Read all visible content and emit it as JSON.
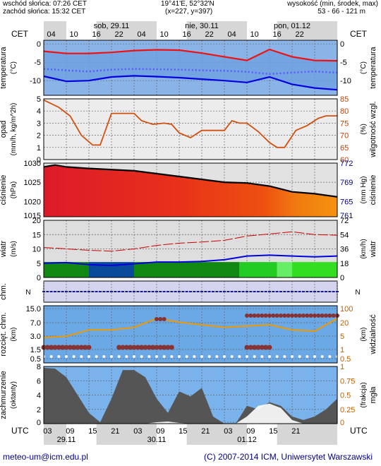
{
  "header": {
    "sunrise": "wschód słońca: 07:26 CET",
    "sunset": "zachód słońca: 15:32 CET",
    "coords": "19°41'E, 52°32'N",
    "grid": "(x=227, y=397)",
    "height_title": "wysokość (min, środek, max)",
    "height_values": "53 - 66 - 121 m"
  },
  "colors": {
    "panel_bg": "#ddddf0",
    "day_band": "#ffffff",
    "night_band": "#d6d6d6",
    "temp_red": "#ee1111",
    "temp_blue": "#0000dd",
    "dew": "#5a5aff",
    "humidity": "#d05010",
    "pressure": "#000000",
    "wind_green": "#11aa11",
    "wind_blue": "#0a4a9a",
    "cloud": "#555555",
    "visibility": "#ee9900",
    "fog": "#ffffff"
  },
  "chart_data": [
    {
      "type": "line",
      "title": "temperatura",
      "ylabel": "(°C)",
      "ylabel_right": "(°C)",
      "title_right": "temperatura",
      "ylim": [
        -14,
        1
      ],
      "ticks": [
        "0",
        "-5",
        "-10"
      ],
      "tick_values": [
        0,
        -5,
        -10
      ],
      "x_hours": [
        0,
        6,
        12,
        18,
        24,
        30,
        36,
        42,
        48,
        54,
        60,
        66,
        72,
        78
      ],
      "series": [
        {
          "values": [
            -2.0,
            -2.6,
            -2.6,
            -2.3,
            -1.8,
            -1.6,
            -1.7,
            -2.5,
            -3.5,
            -4.5,
            -1.5,
            -3.5,
            -4.5,
            -4.6
          ]
        },
        {
          "values": [
            -6.8,
            -7.2,
            -7.5,
            -7.0,
            -6.8,
            -6.9,
            -7.0,
            -7.2,
            -7.3,
            -7.6,
            -8.2,
            -7.8,
            -7.5,
            -7.8
          ]
        },
        {
          "values": [
            -8.8,
            -10.2,
            -10.0,
            -9.0,
            -8.7,
            -8.9,
            -9.2,
            -9.6,
            -10.0,
            -10.5,
            -9.0,
            -11.0,
            -12.0,
            -12.5
          ]
        }
      ]
    },
    {
      "type": "line",
      "title": "opad",
      "ylabel": "(mm/h, kg/m^2h)",
      "ylim": [
        0,
        5
      ],
      "ticks": [
        "5",
        "4",
        "3",
        "2",
        "1",
        "0"
      ],
      "tick_values": [
        5,
        4,
        3,
        2,
        1,
        0
      ],
      "title_right": "wilgotność wzgl.",
      "ylabel_right": "(%)",
      "ticks_right": [
        "85",
        "80",
        "75",
        "70",
        "65",
        "60"
      ],
      "x_hours": [
        0,
        4,
        7,
        10,
        13,
        15,
        18,
        21,
        24,
        26,
        29,
        32,
        34,
        36,
        39,
        42,
        45,
        48,
        50,
        52,
        54,
        57,
        60,
        62,
        64,
        67,
        70,
        73,
        75,
        78
      ],
      "series": [
        {
          "values": [
            84.5,
            81.5,
            78.0,
            70.0,
            66.0,
            66.0,
            79.0,
            79.0,
            79.0,
            76.0,
            74.5,
            75.0,
            74.5,
            71.0,
            69.0,
            72.0,
            72.0,
            72.0,
            76.0,
            75.0,
            75.0,
            71.5,
            67.0,
            65.0,
            65.0,
            72.0,
            74.0,
            77.0,
            78.0,
            78.0
          ]
        }
      ]
    },
    {
      "type": "area",
      "title": "ciśnienie",
      "ylabel": "(hPa)",
      "ylim": [
        1016,
        1030
      ],
      "ticks": [
        "1030",
        "1025",
        "1020",
        "1015"
      ],
      "tick_values": [
        1030,
        1025,
        1020,
        1015
      ],
      "title_right": "ciśnienie",
      "ylabel_right": "(mm Hg)",
      "ticks_right": [
        "772",
        "769",
        "765",
        "761"
      ],
      "x_hours": [
        0,
        3,
        6,
        12,
        24,
        36,
        48,
        54,
        60,
        66,
        72,
        78
      ],
      "series": [
        {
          "values": [
            1029.0,
            1029.5,
            1029.0,
            1028.6,
            1028.0,
            1026.5,
            1025.0,
            1024.8,
            1024.0,
            1022.5,
            1022.0,
            1021.2
          ]
        }
      ]
    },
    {
      "type": "area",
      "title": "wiatr",
      "ylabel": "(m/s)",
      "ylim": [
        0,
        20
      ],
      "ticks": [
        "20",
        "15",
        "10",
        "5",
        "0"
      ],
      "tick_values": [
        20,
        15,
        10,
        5,
        0
      ],
      "title_right": "wiatr",
      "ylabel_right": "(km/h)",
      "ticks_right": [
        "72",
        "54",
        "36",
        "18",
        "0"
      ],
      "x_hours": [
        0,
        6,
        12,
        18,
        24,
        30,
        36,
        42,
        48,
        54,
        60,
        66,
        72,
        78
      ],
      "series": [
        {
          "values": [
            5.0,
            5.2,
            4.5,
            4.2,
            4.8,
            5.4,
            5.4,
            5.6,
            6.2,
            7.5,
            7.8,
            7.5,
            7.2,
            7.5
          ]
        },
        {
          "values": [
            10.5,
            10.0,
            9.5,
            9.2,
            10.0,
            11.2,
            12.0,
            12.4,
            13.0,
            14.5,
            15.2,
            16.0,
            15.0,
            14.8
          ]
        }
      ]
    },
    {
      "type": "line",
      "title": "chm.",
      "ylim": [
        0,
        1
      ],
      "x_hours": [
        0,
        78
      ]
    },
    {
      "type": "scatter",
      "title": "rozcięt. chm.",
      "ylabel": "(km)",
      "title_right": "widzialność",
      "ylabel_right": "(km)",
      "ticks": [
        "15.0",
        "7.0",
        "3.0",
        "1.5",
        "0.5"
      ],
      "ticks_right": [
        "100",
        "20",
        "5",
        "1",
        "0.5"
      ],
      "x_hours": [
        0,
        6,
        12,
        18,
        24,
        30,
        36,
        42,
        48,
        54,
        60,
        66,
        72,
        78
      ],
      "series": [
        {
          "values": [
            2.0,
            2.1,
            2.6,
            2.6,
            2.8,
            3.5,
            3.2,
            3.0,
            2.8,
            2.9,
            3.0,
            2.6,
            2.5,
            3.5
          ]
        }
      ]
    },
    {
      "type": "area",
      "title": "zachmurzenie",
      "ylabel": "(oktanty)",
      "ylim": [
        0,
        8
      ],
      "ticks": [
        "8",
        "6",
        "4",
        "2",
        "0"
      ],
      "tick_values": [
        8,
        6,
        4,
        2,
        0
      ],
      "title_right": "mgła",
      "ylabel_right": "(frakcja)",
      "ticks_right": [
        "1",
        "0.75",
        "0.5",
        "0.25",
        "0"
      ],
      "x_hours": [
        0,
        3,
        6,
        9,
        12,
        15,
        18,
        21,
        24,
        27,
        30,
        33,
        36,
        39,
        42,
        45,
        48,
        51,
        54,
        57,
        60,
        63,
        66,
        69,
        72,
        75,
        78
      ],
      "series": [
        {
          "values": [
            7.8,
            7.7,
            6.5,
            4.0,
            1.5,
            0.2,
            3.5,
            7.5,
            7.5,
            6.5,
            3.5,
            1.5,
            4.5,
            3.8,
            5.0,
            1.0,
            0.0,
            0.0,
            2.5,
            2.0,
            3.0,
            2.5,
            1.0,
            0.5,
            1.0,
            2.0,
            3.5
          ]
        },
        {
          "values": [
            0.0,
            0.0,
            0.0,
            0.0,
            0.0,
            0.0,
            0.0,
            0.0,
            0.0,
            0.0,
            0.2,
            0.3,
            0.1,
            0.0,
            0.0,
            0.0,
            0.0,
            0.0,
            1.0,
            2.5,
            2.8,
            2.2,
            0.5,
            0.0,
            0.0,
            0.0,
            0.0
          ]
        }
      ]
    }
  ],
  "time_axis": {
    "top_left": "CET",
    "top_right": "CET",
    "bottom_left": "UTC",
    "bottom_right": "UTC",
    "days": [
      {
        "label": "sob, 29.11",
        "hour": 18
      },
      {
        "label": "nie, 30.11",
        "hour": 42
      },
      {
        "label": "pon, 01.12",
        "hour": 66
      }
    ],
    "hours_top": [
      "04",
      "10",
      "16",
      "22",
      "04",
      "10",
      "16",
      "22",
      "04",
      "10",
      "16",
      "22"
    ],
    "hours_bottom": [
      "03",
      "09",
      "15",
      "21",
      "03",
      "09",
      "15",
      "21",
      "03",
      "09",
      "15",
      "21"
    ],
    "dates_bottom": [
      "29.11",
      "30.11",
      "01.12"
    ]
  },
  "footer": {
    "email": "meteo-um@icm.edu.pl",
    "copyright": "(C) 2007-2014 ICM, Uniwersytet Warszawski"
  }
}
